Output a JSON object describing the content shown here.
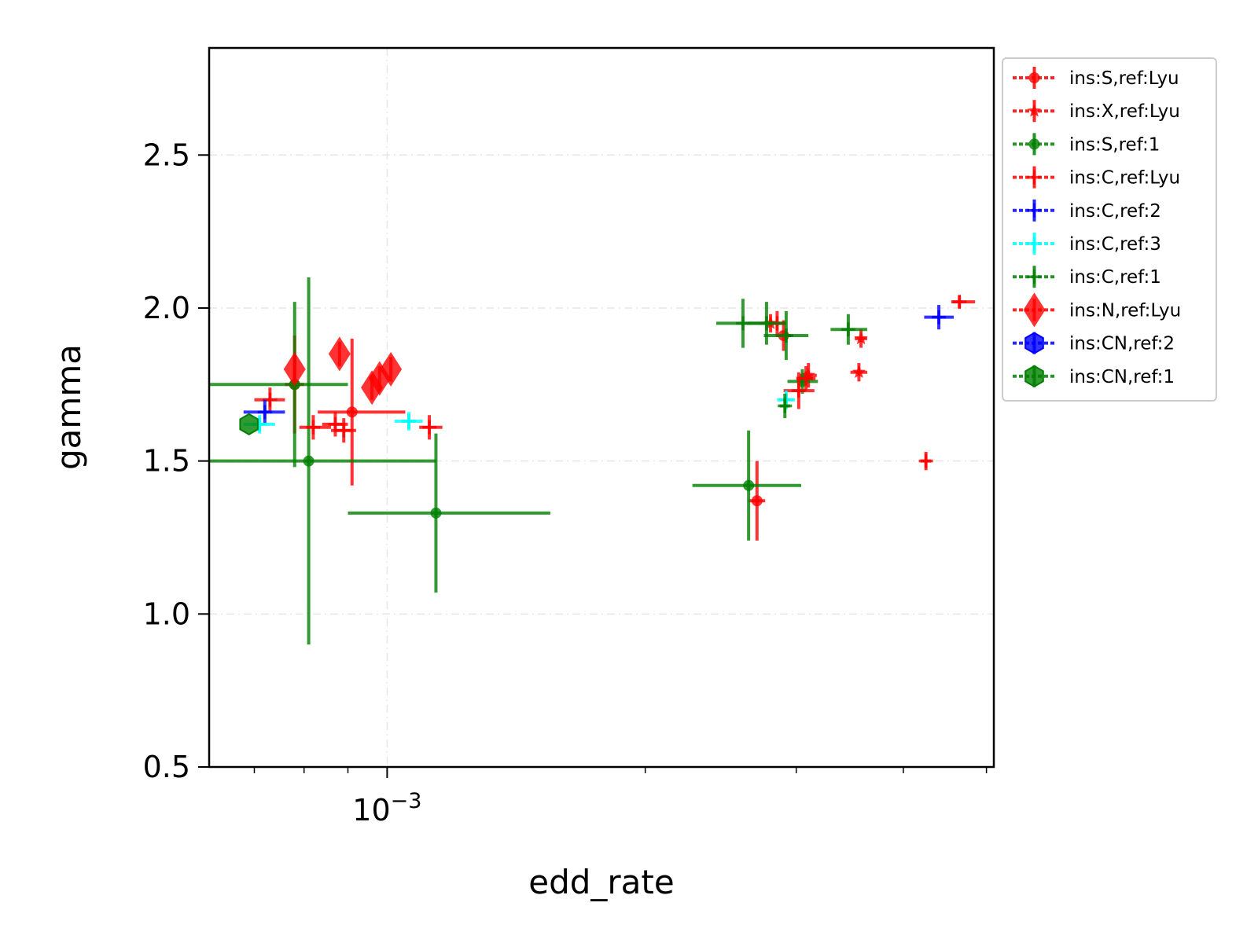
{
  "chart_data": {
    "type": "scatter",
    "title": "",
    "xlabel": "edd_rate",
    "ylabel": "gamma",
    "x_scale": "log",
    "x_tick_labels": [
      {
        "value": 0.001,
        "base": "10",
        "exponent": "−3"
      }
    ],
    "y_ticks": [
      0.5,
      1.0,
      1.5,
      2.0,
      2.5
    ],
    "y_tick_labels": [
      "0.5",
      "1.0",
      "1.5",
      "2.0",
      "2.5"
    ],
    "xlim": [
      0.00062,
      0.0051
    ],
    "ylim": [
      0.5,
      2.85
    ],
    "grid": true,
    "legend_position": "outside-right-top",
    "series": [
      {
        "name": "ins:S,ref:Lyu",
        "color": "#ff0000",
        "marker": "circle",
        "points": [
          {
            "x": 0.00091,
            "y": 1.66,
            "xerr": [
              8e-05,
              0.00014
            ],
            "yerr": [
              0.24,
              0.24
            ]
          },
          {
            "x": 0.00078,
            "y": 1.75,
            "xerr": [
              2e-05,
              2e-05
            ],
            "yerr": [
              0.16,
              0.16
            ]
          },
          {
            "x": 0.0027,
            "y": 1.37,
            "xerr": [
              6e-05,
              6e-05
            ],
            "yerr": [
              0.13,
              0.13
            ]
          },
          {
            "x": 0.0029,
            "y": 1.91,
            "xerr": [
              6e-05,
              6e-05
            ],
            "yerr": [
              0.05,
              0.05
            ]
          }
        ]
      },
      {
        "name": "ins:X,ref:Lyu",
        "color": "#ff0000",
        "marker": "star",
        "points": [
          {
            "x": 0.00357,
            "y": 1.9,
            "xerr": [
              6e-05,
              6e-05
            ],
            "yerr": [
              0.03,
              0.03
            ]
          },
          {
            "x": 0.00355,
            "y": 1.79,
            "xerr": [
              8e-05,
              8e-05
            ],
            "yerr": [
              0.03,
              0.03
            ]
          },
          {
            "x": 0.0028,
            "y": 1.95,
            "xerr": [
              7e-05,
              7e-05
            ],
            "yerr": [
              0.03,
              0.03
            ]
          },
          {
            "x": 0.0031,
            "y": 1.78,
            "xerr": [
              7e-05,
              7e-05
            ],
            "yerr": [
              0.04,
              0.04
            ]
          }
        ]
      },
      {
        "name": "ins:S,ref:1",
        "color": "#008000",
        "marker": "circle",
        "points": [
          {
            "x": 0.00078,
            "y": 1.75,
            "xerr": [
              0.00016,
              0.00012
            ],
            "yerr": [
              0.27,
              0.27
            ]
          },
          {
            "x": 0.00081,
            "y": 1.5,
            "xerr": [
              0.00019,
              0.00033
            ],
            "yerr": [
              0.6,
              0.6
            ]
          },
          {
            "x": 0.00114,
            "y": 1.33,
            "xerr": [
              0.00024,
              0.00041
            ],
            "yerr": [
              0.26,
              0.26
            ]
          },
          {
            "x": 0.00264,
            "y": 1.42,
            "xerr": [
              0.00037,
              0.0004
            ],
            "yerr": [
              0.18,
              0.18
            ]
          },
          {
            "x": 0.00305,
            "y": 1.76,
            "xerr": [
              0.00012,
              0.00013
            ],
            "yerr": [
              0.04,
              0.04
            ]
          }
        ]
      },
      {
        "name": "ins:C,ref:Lyu",
        "color": "#ff0000",
        "marker": "plus",
        "points": [
          {
            "x": 0.00073,
            "y": 1.7,
            "xerr": [
              3e-05,
              3e-05
            ],
            "yerr": [
              0.04,
              0.04
            ]
          },
          {
            "x": 0.00082,
            "y": 1.61,
            "xerr": [
              3e-05,
              4e-05
            ],
            "yerr": [
              0.04,
              0.04
            ]
          },
          {
            "x": 0.00087,
            "y": 1.62,
            "xerr": [
              3e-05,
              3e-05
            ],
            "yerr": [
              0.04,
              0.04
            ]
          },
          {
            "x": 0.00089,
            "y": 1.6,
            "xerr": [
              3e-05,
              3e-05
            ],
            "yerr": [
              0.04,
              0.04
            ]
          },
          {
            "x": 0.00112,
            "y": 1.61,
            "xerr": [
              3e-05,
              4e-05
            ],
            "yerr": [
              0.04,
              0.04
            ]
          },
          {
            "x": 0.00285,
            "y": 1.95,
            "xerr": [
              6e-05,
              6e-05
            ],
            "yerr": [
              0.04,
              0.04
            ]
          },
          {
            "x": 0.00302,
            "y": 1.73,
            "xerr": [
              0.00012,
              0.00013
            ],
            "yerr": [
              0.06,
              0.06
            ]
          },
          {
            "x": 0.00308,
            "y": 1.77,
            "xerr": [
              8e-05,
              8e-05
            ],
            "yerr": [
              0.04,
              0.04
            ]
          },
          {
            "x": 0.00425,
            "y": 1.5,
            "xerr": [
              6e-05,
              6e-05
            ],
            "yerr": [
              0.03,
              0.03
            ]
          },
          {
            "x": 0.00465,
            "y": 2.02,
            "xerr": [
              0.0001,
              0.0002
            ],
            "yerr": [
              0.02,
              0.02
            ]
          }
        ]
      },
      {
        "name": "ins:C,ref:2",
        "color": "#0000ff",
        "marker": "plus",
        "points": [
          {
            "x": 0.00072,
            "y": 1.66,
            "xerr": [
              4e-05,
              4e-05
            ],
            "yerr": [
              0.04,
              0.04
            ]
          },
          {
            "x": 0.0044,
            "y": 1.97,
            "xerr": [
              0.00017,
              0.00018
            ],
            "yerr": [
              0.04,
              0.04
            ]
          }
        ]
      },
      {
        "name": "ins:C,ref:3",
        "color": "#00ffff",
        "marker": "plus",
        "points": [
          {
            "x": 0.00071,
            "y": 1.62,
            "xerr": [
              3e-05,
              3e-05
            ],
            "yerr": [
              0.03,
              0.03
            ]
          },
          {
            "x": 0.00106,
            "y": 1.63,
            "xerr": [
              4e-05,
              4e-05
            ],
            "yerr": [
              0.03,
              0.03
            ]
          },
          {
            "x": 0.00292,
            "y": 1.7,
            "xerr": [
              7e-05,
              7e-05
            ],
            "yerr": [
              0.03,
              0.03
            ]
          }
        ]
      },
      {
        "name": "ins:C,ref:1",
        "color": "#008000",
        "marker": "plus",
        "points": [
          {
            "x": 0.0026,
            "y": 1.95,
            "xerr": [
              0.00018,
              0.0002
            ],
            "yerr": [
              0.08,
              0.08
            ]
          },
          {
            "x": 0.00277,
            "y": 1.95,
            "xerr": [
              0.00014,
              0.00015
            ],
            "yerr": [
              0.07,
              0.07
            ]
          },
          {
            "x": 0.00292,
            "y": 1.91,
            "xerr": [
              0.00017,
              0.00018
            ],
            "yerr": [
              0.08,
              0.08
            ]
          },
          {
            "x": 0.00291,
            "y": 1.68,
            "xerr": [
              4e-05,
              4e-05
            ],
            "yerr": [
              0.04,
              0.04
            ]
          },
          {
            "x": 0.00345,
            "y": 1.93,
            "xerr": [
              0.00016,
              0.00018
            ],
            "yerr": [
              0.05,
              0.05
            ]
          }
        ]
      },
      {
        "name": "ins:N,ref:Lyu",
        "color": "#ff0000",
        "marker": "diamond",
        "points": [
          {
            "x": 0.00078,
            "y": 1.8,
            "xerr": [
              0,
              0
            ],
            "yerr": [
              0.04,
              0.04
            ]
          },
          {
            "x": 0.00088,
            "y": 1.85,
            "xerr": [
              0,
              0
            ],
            "yerr": [
              0.04,
              0.04
            ]
          },
          {
            "x": 0.00096,
            "y": 1.74,
            "xerr": [
              0,
              0
            ],
            "yerr": [
              0.04,
              0.04
            ]
          },
          {
            "x": 0.00098,
            "y": 1.77,
            "xerr": [
              0,
              0
            ],
            "yerr": [
              0.04,
              0.04
            ]
          },
          {
            "x": 0.00101,
            "y": 1.8,
            "xerr": [
              0,
              0
            ],
            "yerr": [
              0.04,
              0.04
            ]
          }
        ]
      },
      {
        "name": "ins:CN,ref:2",
        "color": "#0000ff",
        "marker": "hexagon",
        "points": []
      },
      {
        "name": "ins:CN,ref:1",
        "color": "#008000",
        "marker": "hexagon",
        "points": [
          {
            "x": 0.00069,
            "y": 1.62,
            "xerr": [
              0,
              0
            ],
            "yerr": [
              0,
              0
            ]
          }
        ]
      }
    ]
  }
}
